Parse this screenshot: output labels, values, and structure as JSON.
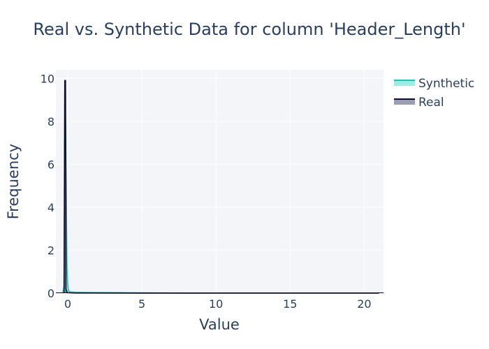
{
  "chart_data": {
    "type": "area",
    "title": "Real vs. Synthetic Data for column 'Header_Length'",
    "xlabel": "Value",
    "ylabel": "Frequency",
    "xlim": [
      -0.8,
      21.3
    ],
    "ylim": [
      0,
      10.4
    ],
    "x_ticks": [
      0,
      5,
      10,
      15,
      20
    ],
    "x_tick_labels": [
      "0",
      "5",
      "10",
      "15",
      "20"
    ],
    "y_ticks": [
      0,
      2,
      4,
      6,
      8,
      10
    ],
    "y_tick_labels": [
      "0",
      "2",
      "4",
      "6",
      "8",
      "10"
    ],
    "grid": true,
    "legend_position": "top-right",
    "series": [
      {
        "name": "Synthetic",
        "color": "#40e0d0",
        "line_color": "#1fbfb1",
        "x": [
          -0.35,
          -0.25,
          -0.18,
          -0.1,
          -0.05,
          0.0,
          0.05,
          0.15,
          0.3,
          0.6,
          1.0,
          2.0,
          3.0,
          5.0,
          7.0,
          9.0
        ],
        "y": [
          0,
          0.3,
          9.8,
          5.0,
          1.2,
          0.4,
          0.12,
          0.06,
          0.05,
          0.045,
          0.04,
          0.03,
          0.025,
          0.015,
          0.008,
          0.004
        ]
      },
      {
        "name": "Real",
        "color": "#4a4f77",
        "line_color": "#0b0b2a",
        "x": [
          -0.25,
          -0.2,
          -0.15,
          -0.12,
          -0.05,
          0.0,
          0.5,
          2.0,
          5.0,
          10.0,
          15.0,
          21.0
        ],
        "y": [
          0,
          9.9,
          9.9,
          0.2,
          0.05,
          0.02,
          0.006,
          0.004,
          0.003,
          0.002,
          0.001,
          0.001
        ]
      }
    ]
  }
}
